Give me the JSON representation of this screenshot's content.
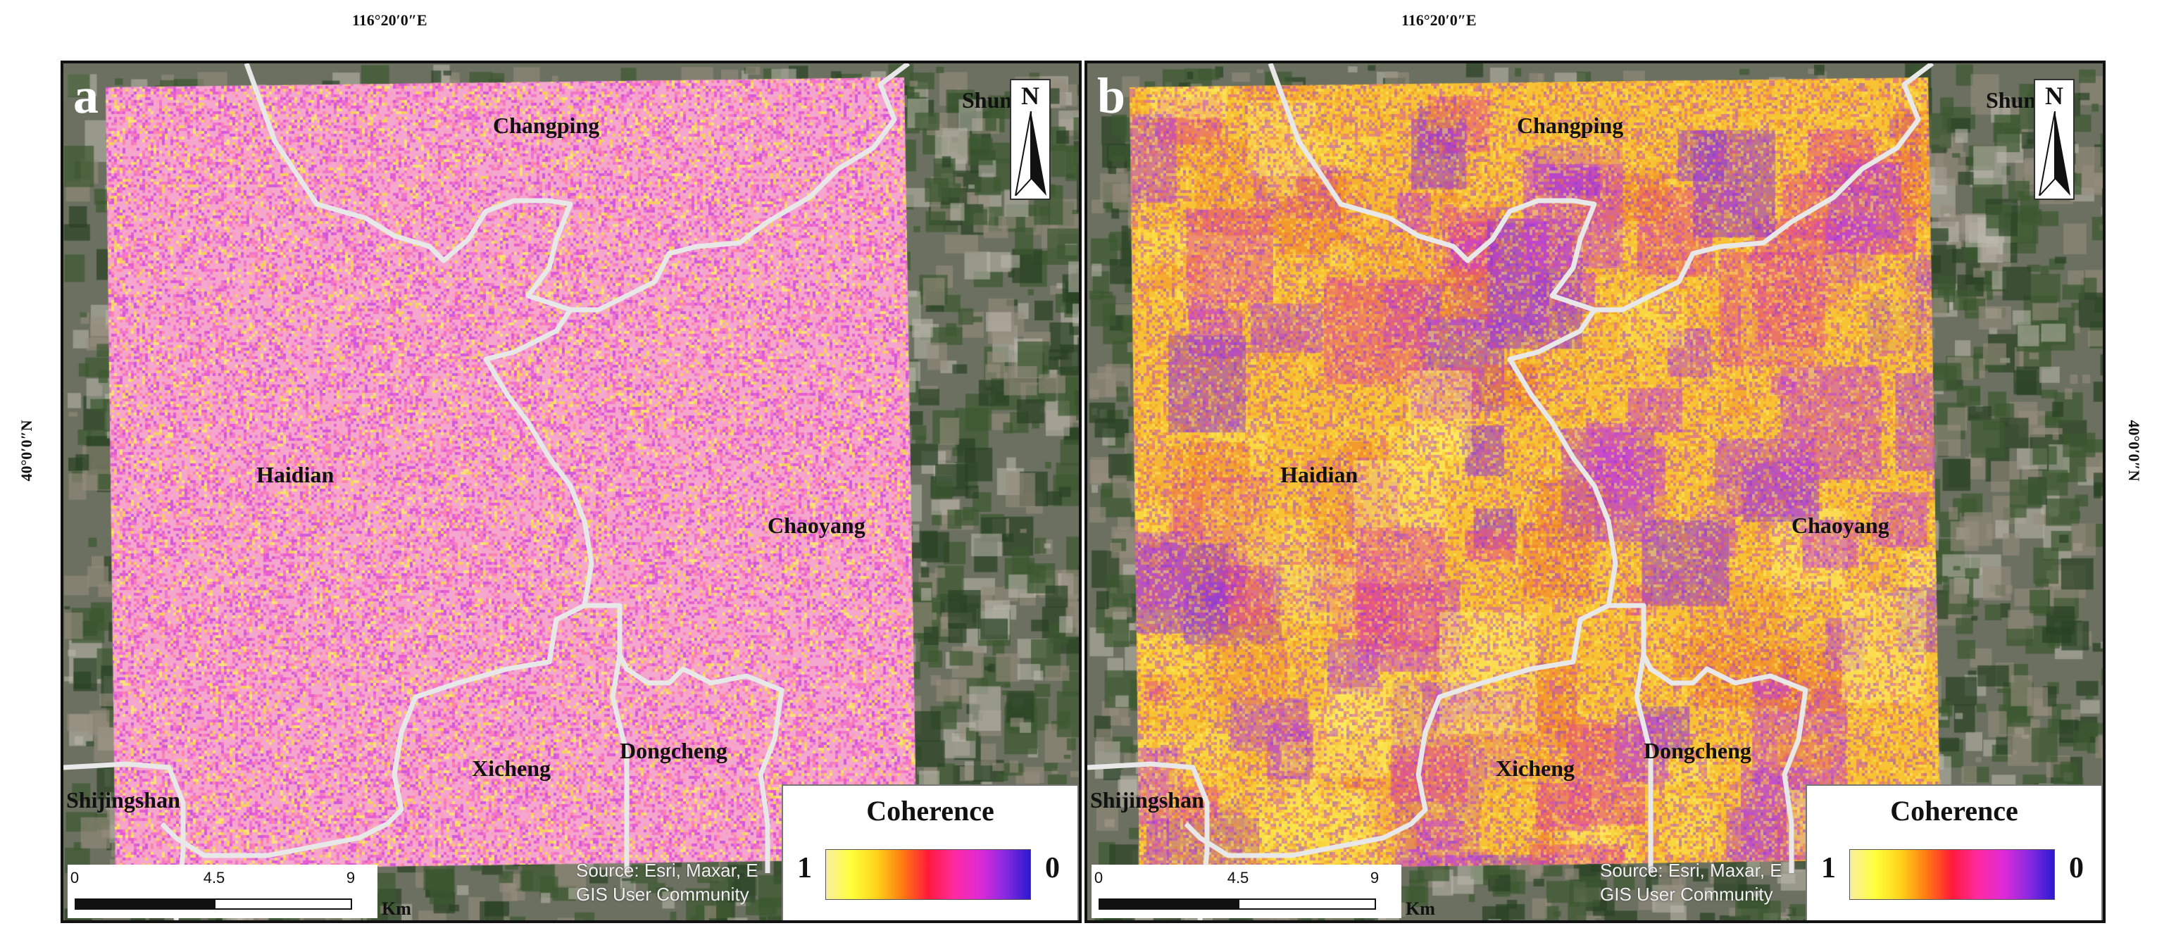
{
  "graticule": {
    "longitude_label": "116°20′0″E",
    "latitude_label": "40°0′0″N"
  },
  "panels": [
    {
      "id": "a",
      "letter": "a",
      "districts": [
        "Changping",
        "Haidian",
        "Chaoyang",
        "Xicheng",
        "Dongcheng",
        "Shijingshan",
        "Shuny"
      ],
      "raster_palette": [
        "#f5a6cf",
        "#ee6ad2",
        "#f06fc2",
        "#e44fd0",
        "#ff9bb8",
        "#f7d54c",
        "#fbe96a",
        "#c84bd9",
        "#ff7ea3"
      ]
    },
    {
      "id": "b",
      "letter": "b",
      "districts": [
        "Changping",
        "Haidian",
        "Chaoyang",
        "Xicheng",
        "Dongcheng",
        "Shijingshan",
        "Shuny"
      ],
      "raster_palette": [
        "#f7c233",
        "#fbe64a",
        "#f39a2d",
        "#e34a8a",
        "#c83fd6",
        "#8c35d8",
        "#fdf06a",
        "#ef7a2a",
        "#b644d6"
      ]
    }
  ],
  "north_arrow": {
    "label": "N"
  },
  "scalebar": {
    "ticks": [
      "0",
      "4.5",
      "9"
    ],
    "unit": "Km"
  },
  "credits": {
    "line1": "Source: Esri, Maxar, E",
    "line2": "GIS User Community"
  },
  "legend": {
    "title": "Coherence",
    "high_label": "1",
    "low_label": "0",
    "ramp_colors": [
      "#f7eea0",
      "#ffff3a",
      "#ffd21a",
      "#ff7a12",
      "#ff1a3a",
      "#ff2aa0",
      "#e02ad6",
      "#8a2ae0",
      "#2a1ad0"
    ]
  },
  "colors": {
    "boundary": "#e8e8e8",
    "basemap_green": "#4f6a3e",
    "basemap_urban": "#8a8275"
  }
}
